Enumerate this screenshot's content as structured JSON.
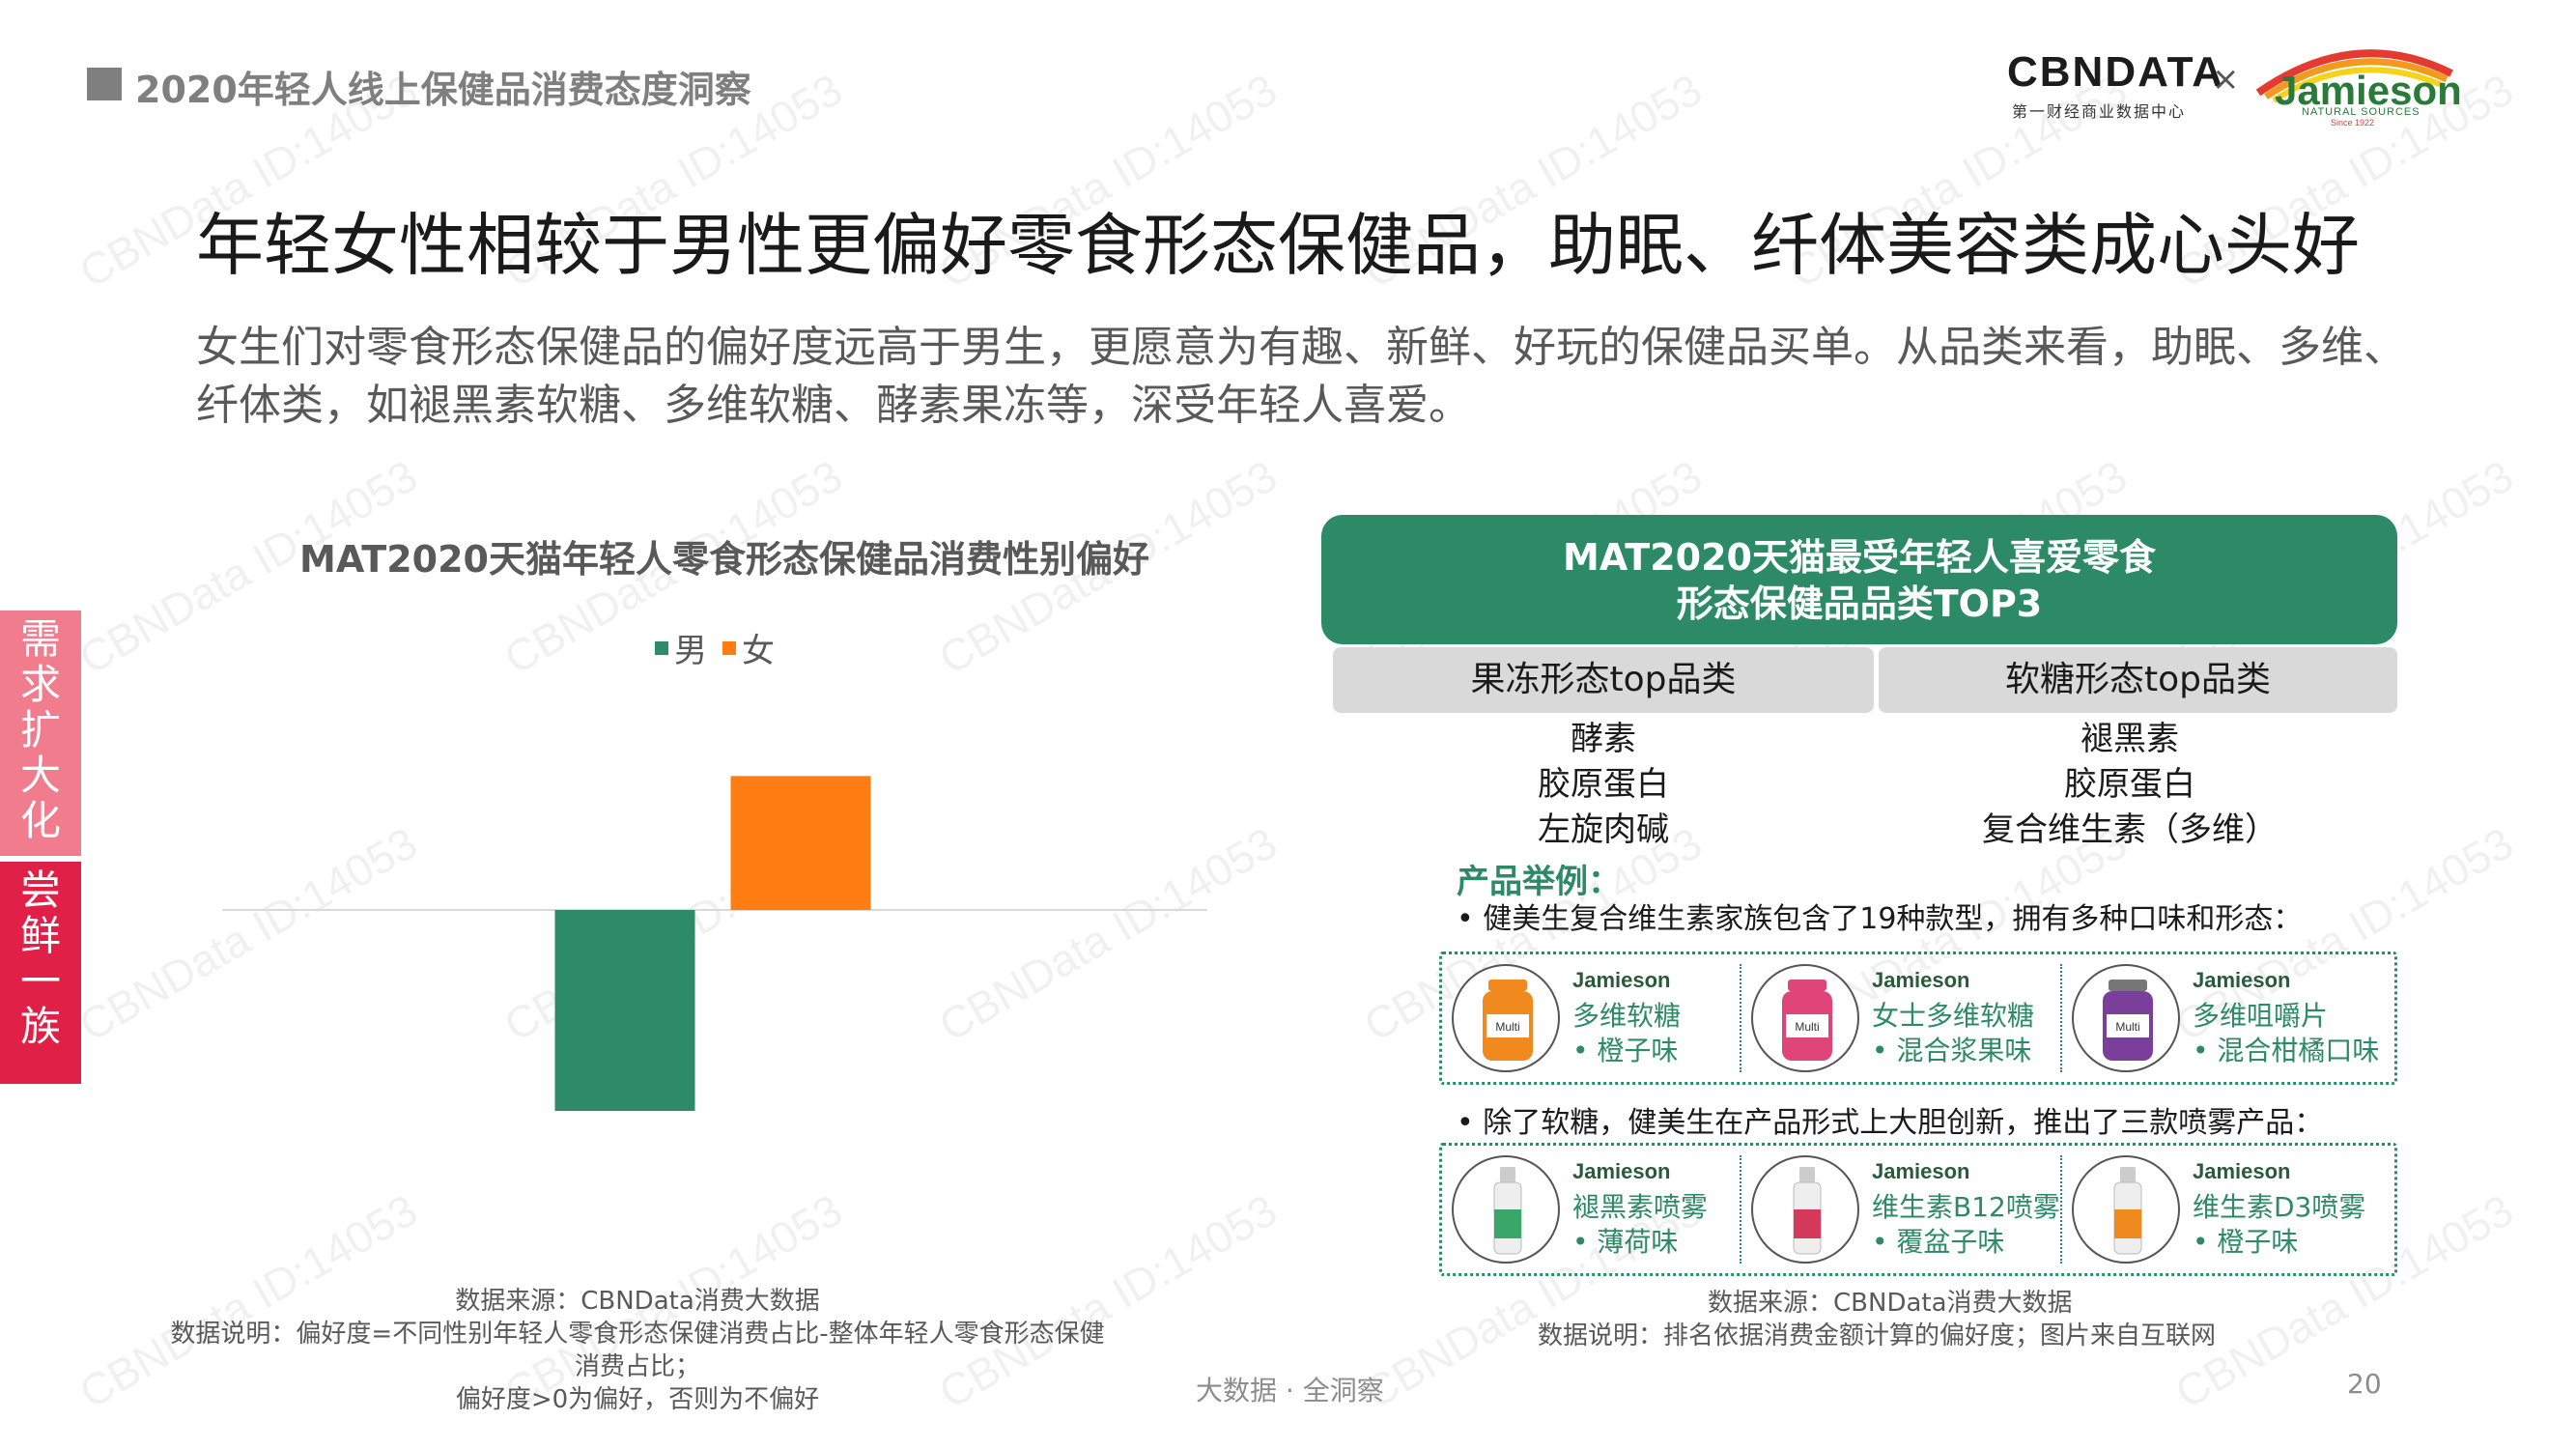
{
  "header": {
    "section_title": "2020年轻人线上保健品消费态度洞察"
  },
  "logos": {
    "cbn": "CBNDATA",
    "cbn_sub": "第一财经商业数据中心",
    "times": "×",
    "jamieson": "Jamieson",
    "jamieson_sub": "NATURAL SOURCES",
    "jamieson_since": "Since 1922"
  },
  "title": "年轻女性相较于男性更偏好零食形态保健品，助眠、纤体美容类成心头好",
  "subtitle": "女生们对零食形态保健品的偏好度远高于男生，更愿意为有趣、新鲜、好玩的保健品买单。从品类来看，助眠、多维、纤体类，如褪黑素软糖、多维软糖、酵素果冻等，深受年轻人喜爱。",
  "side_tabs": {
    "top_chars": [
      "需",
      "求",
      "扩",
      "大",
      "化"
    ],
    "bottom_chars": [
      "尝",
      "鲜",
      "一",
      "族"
    ]
  },
  "watermark": "CBNData ID:14053",
  "chart_data": {
    "type": "bar",
    "title": "MAT2020天猫年轻人零食形态保健品消费性别偏好",
    "categories": [
      "男",
      "女"
    ],
    "series": [
      {
        "name": "偏好度",
        "values": [
          -0.15,
          0.1
        ]
      }
    ],
    "colors": [
      "#2e8b6a",
      "#ff7d12"
    ],
    "legend": [
      "男",
      "女"
    ],
    "legend_position": "top-center",
    "ylim": [
      -0.2,
      0.2
    ],
    "xlabel": "",
    "ylabel": "",
    "grid": false
  },
  "left_source": {
    "line1": "数据来源：CBNData消费大数据",
    "line2": "数据说明：偏好度=不同性别年轻人零食形态保健消费占比-整体年轻人零食形态保健消费占比；",
    "line3": "偏好度>0为偏好，否则为不偏好"
  },
  "top3": {
    "title_line1": "MAT2020天猫最受年轻人喜爱零食",
    "title_line2": "形态保健品品类TOP3",
    "jelly": {
      "header": "果冻形态top品类",
      "items": [
        "酵素",
        "胶原蛋白",
        "左旋肉碱"
      ]
    },
    "gummy": {
      "header": "软糖形态top品类",
      "items": [
        "褪黑素",
        "胶原蛋白",
        "复合维生素（多维）"
      ]
    }
  },
  "examples": {
    "label": "产品举例：",
    "bullet1": "•  健美生复合维生素家族包含了19种款型，拥有多种口味和形态：",
    "bullet2": "•  除了软糖，健美生在产品形式上大胆创新，推出了三款喷雾产品：",
    "row1": [
      {
        "brand": "Jamieson",
        "name": "多维软糖",
        "flavor": "•  橙子味",
        "color": "#f08a1e"
      },
      {
        "brand": "Jamieson",
        "name": "女士多维软糖",
        "flavor": "•  混合浆果味",
        "color": "#e0457a"
      },
      {
        "brand": "Jamieson",
        "name": "多维咀嚼片",
        "flavor": "•  混合柑橘口味",
        "color": "#7a3f9a"
      }
    ],
    "row2": [
      {
        "brand": "Jamieson",
        "name": "褪黑素喷雾",
        "flavor": "•  薄荷味",
        "color": "#3aa66a"
      },
      {
        "brand": "Jamieson",
        "name": "维生素B12喷雾",
        "flavor": "•  覆盆子味",
        "color": "#d43a5a"
      },
      {
        "brand": "Jamieson",
        "name": "维生素D3喷雾",
        "flavor": "•  橙子味",
        "color": "#f08a1e"
      }
    ],
    "bottle_label": "Multi"
  },
  "right_source": {
    "line1": "数据来源：CBNData消费大数据",
    "line2": "数据说明：排名依据消费金额计算的偏好度；图片来自互联网"
  },
  "footer": {
    "tagline": "大数据 · 全洞察",
    "page": "20"
  }
}
